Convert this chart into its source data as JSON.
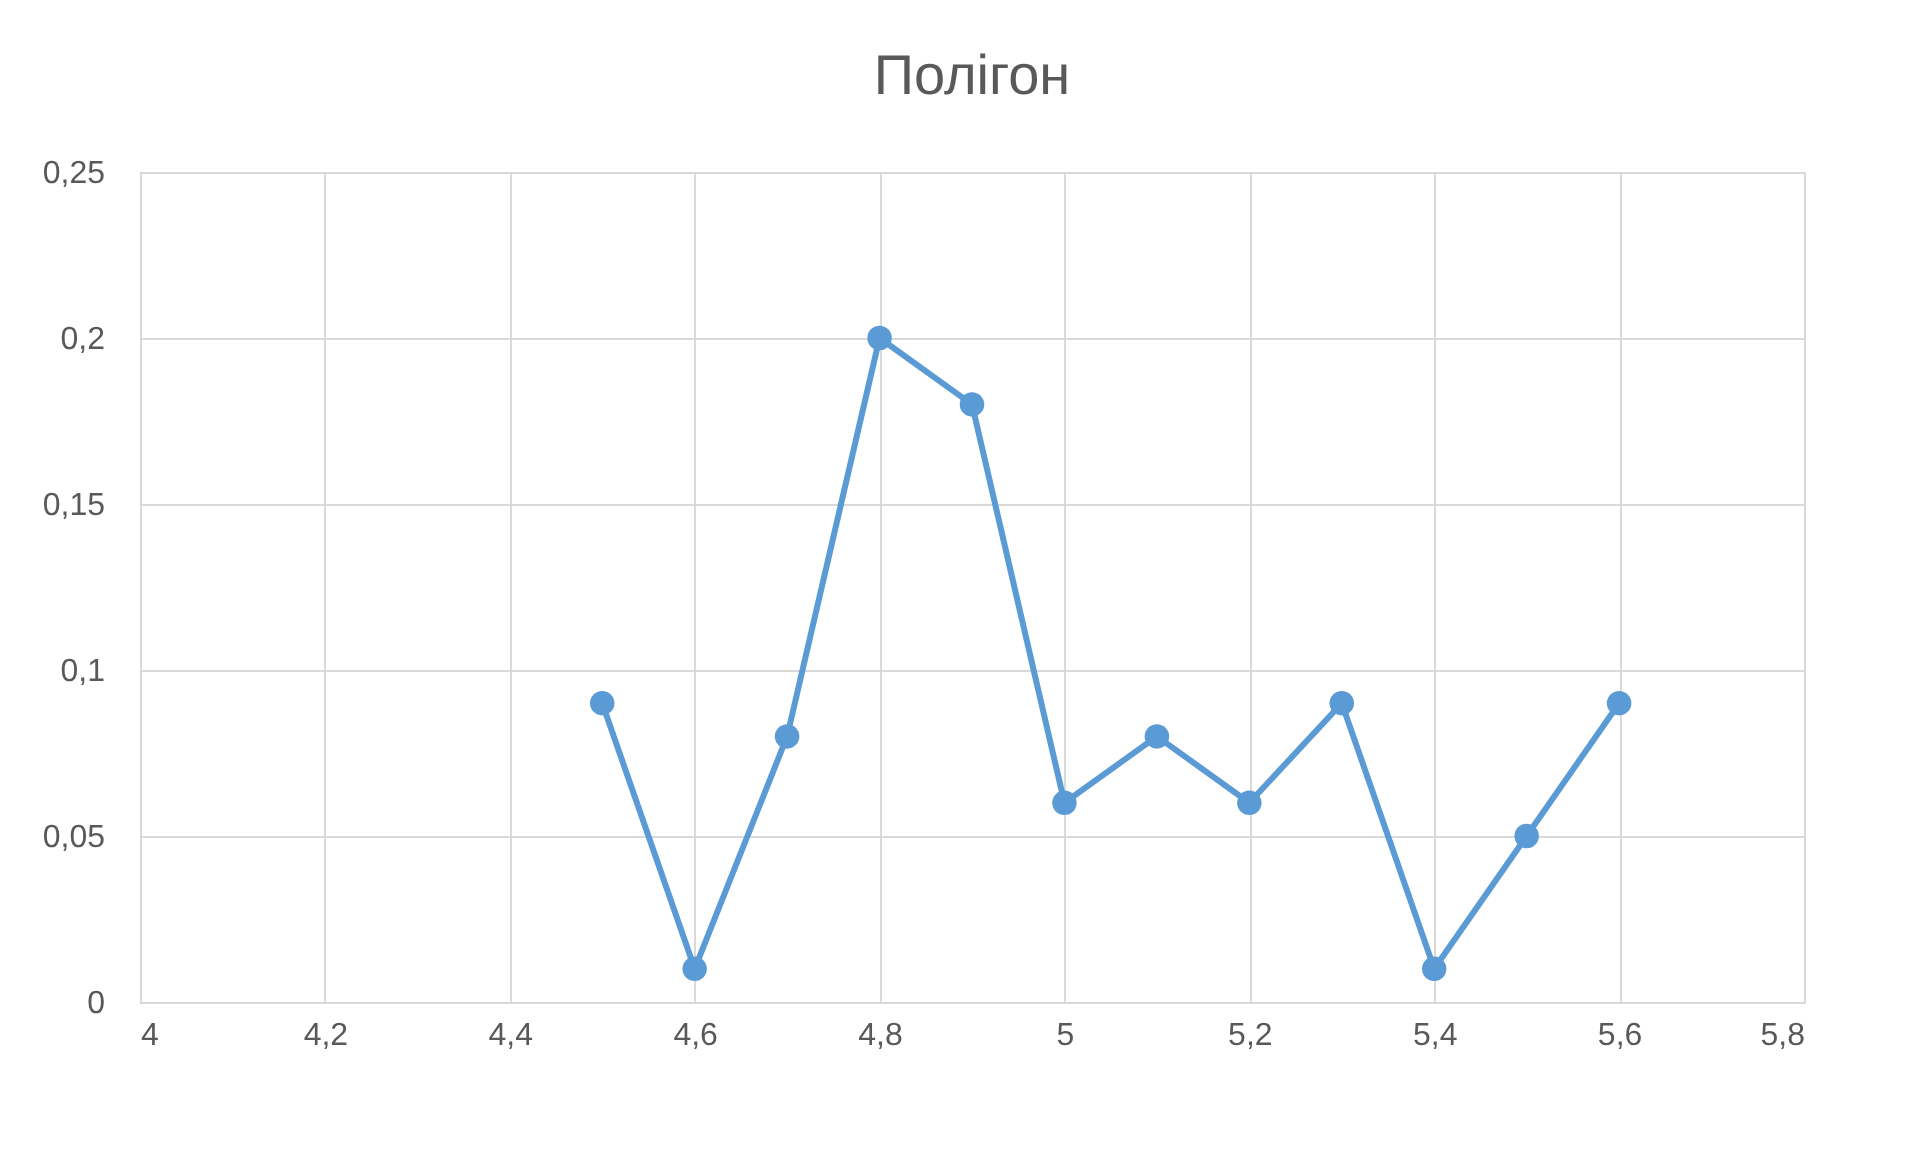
{
  "chart_data": {
    "type": "line",
    "title": "Полігон",
    "x": [
      4.5,
      4.6,
      4.7,
      4.8,
      4.9,
      5,
      5.1,
      5.2,
      5.3,
      5.4,
      5.5,
      5.6
    ],
    "series": [
      {
        "color": "#5b9bd5",
        "values": [
          0.09,
          0.01,
          0.08,
          0.2,
          0.18,
          0.06,
          0.08,
          0.06,
          0.09,
          0.01,
          0.05,
          0.09
        ]
      }
    ],
    "xlim": [
      4,
      5.8
    ],
    "xticks": [
      4,
      {
        "value": 4.2,
        "label": "4,2"
      },
      {
        "value": 4.4,
        "label": "4,4"
      },
      {
        "value": 4.6,
        "label": "4,6"
      },
      {
        "value": 4.8,
        "label": "4,8"
      },
      5,
      {
        "value": 5.2,
        "label": "5,2"
      },
      {
        "value": 5.4,
        "label": "5,4"
      },
      {
        "value": 5.6,
        "label": "5,6"
      },
      {
        "value": 5.8,
        "label": "5,8"
      }
    ],
    "ylim": [
      0,
      0.25
    ],
    "yticks": [
      0,
      {
        "value": 0.05,
        "label": "0,05"
      },
      {
        "value": 0.1,
        "label": "0,1"
      },
      {
        "value": 0.15,
        "label": "0,15"
      },
      {
        "value": 0.2,
        "label": "0,2"
      },
      {
        "value": 0.25,
        "label": "0,25"
      }
    ],
    "grid": true,
    "legend": false,
    "marker": "circle",
    "line_style": "solid"
  }
}
